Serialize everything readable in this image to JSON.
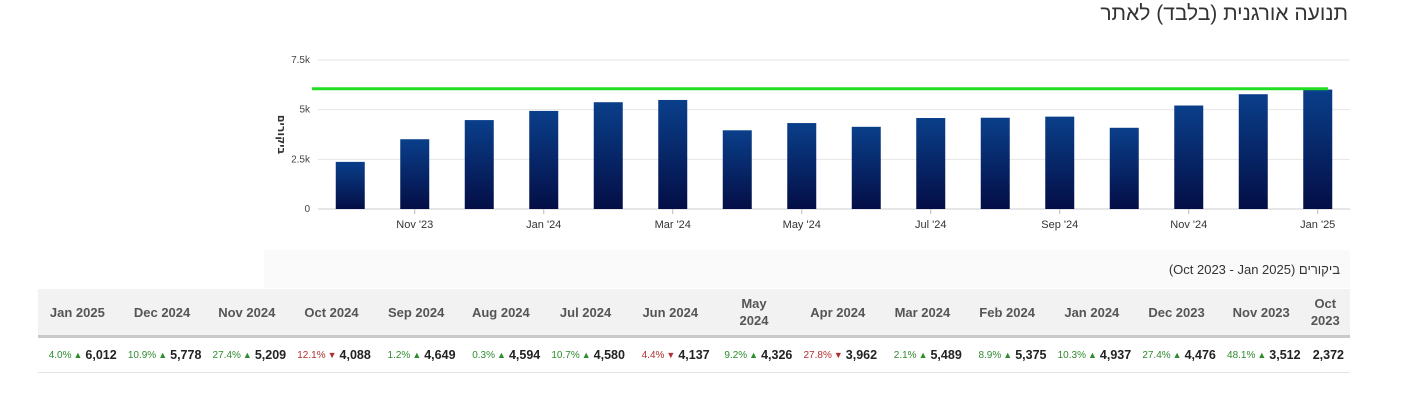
{
  "title": "תנועה אורגנית (בלבד) לאתר",
  "subtitle": "ביקורים (Oct 2023 - Jan 2025)",
  "colors": {
    "bar_top": "#0a3f8a",
    "bar_bottom": "#040e46",
    "target_line": "#22dd22",
    "up": "#2e8b2e",
    "down": "#b03030"
  },
  "chart_data": {
    "type": "bar",
    "categories": [
      "Oct 2023",
      "Nov 2023",
      "Dec 2023",
      "Jan 2024",
      "Feb 2024",
      "Mar 2024",
      "Apr 2024",
      "May 2024",
      "Jun 2024",
      "Jul 2024",
      "Aug 2024",
      "Sep 2024",
      "Oct 2024",
      "Nov 2024",
      "Dec 2024",
      "Jan 2025"
    ],
    "values": [
      2372,
      3512,
      4476,
      4937,
      5375,
      5489,
      3962,
      4326,
      4137,
      4580,
      4594,
      4649,
      4088,
      5209,
      5778,
      6012
    ],
    "ylabel": "ביקורים",
    "ylim": [
      0,
      7500
    ],
    "yticks": [
      0,
      2500,
      5000,
      7500
    ],
    "ytick_labels": [
      "0",
      "2.5k",
      "5k",
      "7.5k"
    ],
    "xtick_labels": [
      {
        "index": 1,
        "label": "Nov '23"
      },
      {
        "index": 3,
        "label": "Jan '24"
      },
      {
        "index": 5,
        "label": "Mar '24"
      },
      {
        "index": 7,
        "label": "May '24"
      },
      {
        "index": 9,
        "label": "Jul '24"
      },
      {
        "index": 11,
        "label": "Sep '24"
      },
      {
        "index": 13,
        "label": "Nov '24"
      },
      {
        "index": 15,
        "label": "Jan '25"
      }
    ],
    "reference_line": 6050,
    "grid": true
  },
  "table": {
    "columns": [
      {
        "header": "Jan 2025",
        "pct": "4.0%",
        "dir": "up",
        "value": "6,012"
      },
      {
        "header": "Dec 2024",
        "pct": "10.9%",
        "dir": "up",
        "value": "5,778"
      },
      {
        "header": "Nov 2024",
        "pct": "27.4%",
        "dir": "up",
        "value": "5,209"
      },
      {
        "header": "Oct 2024",
        "pct": "12.1%",
        "dir": "down",
        "value": "4,088"
      },
      {
        "header": "Sep 2024",
        "pct": "1.2%",
        "dir": "up",
        "value": "4,649"
      },
      {
        "header": "Aug 2024",
        "pct": "0.3%",
        "dir": "up",
        "value": "4,594"
      },
      {
        "header": "Jul 2024",
        "pct": "10.7%",
        "dir": "up",
        "value": "4,580"
      },
      {
        "header": "Jun 2024",
        "pct": "4.4%",
        "dir": "down",
        "value": "4,137"
      },
      {
        "header": "May 2024",
        "pct": "9.2%",
        "dir": "up",
        "value": "4,326"
      },
      {
        "header": "Apr 2024",
        "pct": "27.8%",
        "dir": "down",
        "value": "3,962"
      },
      {
        "header": "Mar 2024",
        "pct": "2.1%",
        "dir": "up",
        "value": "5,489"
      },
      {
        "header": "Feb 2024",
        "pct": "8.9%",
        "dir": "up",
        "value": "5,375"
      },
      {
        "header": "Jan 2024",
        "pct": "10.3%",
        "dir": "up",
        "value": "4,937"
      },
      {
        "header": "Dec 2023",
        "pct": "27.4%",
        "dir": "up",
        "value": "4,476"
      },
      {
        "header": "Nov 2023",
        "pct": "48.1%",
        "dir": "up",
        "value": "3,512"
      },
      {
        "header": "Oct 2023",
        "pct": "",
        "dir": "",
        "value": "2,372"
      }
    ]
  }
}
